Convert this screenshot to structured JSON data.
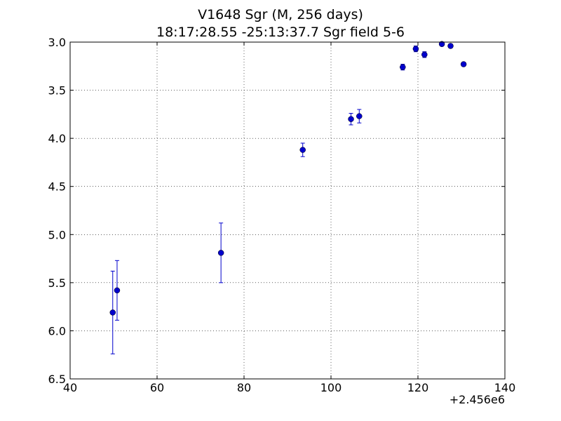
{
  "chart_data": {
    "type": "scatter",
    "title": "V1648 Sgr  (M, 256 days)",
    "subtitle": "18:17:28.55 -25:13:37.7 Sgr field 5-6",
    "xlabel": "",
    "ylabel": "",
    "x_offset_label": "+2.456e6",
    "xlim": [
      40,
      140
    ],
    "ylim": [
      6.5,
      3.0
    ],
    "y_inverted": true,
    "grid": true,
    "xticks": [
      "40",
      "60",
      "80",
      "100",
      "120",
      "140"
    ],
    "yticks": [
      "3.0",
      "3.5",
      "4.0",
      "4.5",
      "5.0",
      "5.5",
      "6.0",
      "6.5"
    ],
    "color": "#0000cc",
    "series": [
      {
        "points": [
          {
            "x": 49.8,
            "y": 5.81,
            "err": 0.43
          },
          {
            "x": 50.8,
            "y": 5.58,
            "err": 0.31
          },
          {
            "x": 74.7,
            "y": 5.19,
            "err": 0.31
          },
          {
            "x": 93.5,
            "y": 4.12,
            "err": 0.07
          },
          {
            "x": 104.6,
            "y": 3.8,
            "err": 0.06
          },
          {
            "x": 106.5,
            "y": 3.77,
            "err": 0.07
          },
          {
            "x": 116.5,
            "y": 3.26,
            "err": 0.03
          },
          {
            "x": 119.5,
            "y": 3.07,
            "err": 0.03
          },
          {
            "x": 121.5,
            "y": 3.13,
            "err": 0.03
          },
          {
            "x": 125.5,
            "y": 3.02,
            "err": 0.02
          },
          {
            "x": 127.5,
            "y": 3.04,
            "err": 0.02
          },
          {
            "x": 130.5,
            "y": 3.23,
            "err": 0.02
          }
        ]
      }
    ]
  }
}
